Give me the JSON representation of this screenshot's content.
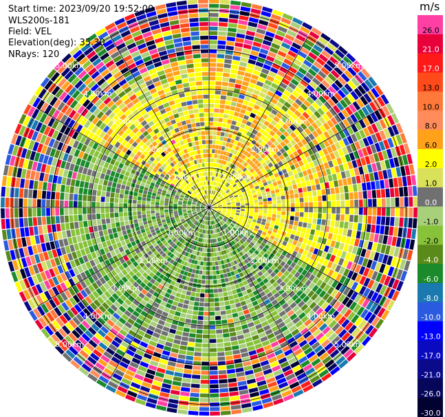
{
  "info": {
    "start_time": "Start time: 2023/09/20 19:52:00",
    "instrument": "WLS200s-181",
    "field": "Field: VEL",
    "elevation": "Elevation(deg): 35.30",
    "nrays": "NRays: 120"
  },
  "colors": {
    "background": "#ffffff",
    "grid": "#000000",
    "range_label": "#ffffff"
  },
  "chart_data": {
    "type": "heatmap",
    "subtype": "radar-ppi",
    "field": "VEL",
    "rays": 120,
    "elevation_deg": 35.3,
    "range_rings_km": [
      1.0,
      2.0,
      3.0,
      4.0,
      5.0
    ],
    "range_ring_labels": [
      "1.00km",
      "2.00km",
      "3.00km",
      "4.00km",
      "5.00km"
    ],
    "radial_spokes_deg": [
      0,
      30,
      60,
      90,
      120,
      150,
      180,
      210,
      240,
      270,
      300,
      330
    ],
    "colorbar": {
      "unit": "m/s",
      "ticks": [
        "26.0",
        "21.0",
        "17.0",
        "13.0",
        "10.0",
        "8.0",
        "6.0",
        "2.0",
        "1.0",
        "0.0",
        "-1.0",
        "-2.0",
        "-4.0",
        "-6.0",
        "-8.0",
        "-10.0",
        "-13.0",
        "-17.0",
        "-21.0",
        "-26.0",
        "-30.0"
      ],
      "bands": [
        {
          "label": "26.0",
          "color": "#ff3fa4"
        },
        {
          "label": "21.0",
          "color": "#e8003a"
        },
        {
          "label": "17.0",
          "color": "#ff1a1a"
        },
        {
          "label": "13.0",
          "color": "#ff4a1a"
        },
        {
          "label": "10.0",
          "color": "#ff7a3a"
        },
        {
          "label": "8.0",
          "color": "#ff8c5a"
        },
        {
          "label": "6.0",
          "color": "#ffa21a"
        },
        {
          "label": "2.0",
          "color": "#ffff00"
        },
        {
          "label": "1.0",
          "color": "#d9e15a"
        },
        {
          "label": "0.0",
          "color": "#707070"
        },
        {
          "label": "-1.0",
          "color": "#a8d07a"
        },
        {
          "label": "-2.0",
          "color": "#88c23a"
        },
        {
          "label": "-4.0",
          "color": "#5a8a1a"
        },
        {
          "label": "-6.0",
          "color": "#1a8a2a"
        },
        {
          "label": "-8.0",
          "color": "#1a7ab0"
        },
        {
          "label": "-10.0",
          "color": "#2a5ae0"
        },
        {
          "label": "-13.0",
          "color": "#0000ff"
        },
        {
          "label": "-17.0",
          "color": "#0a0ac0"
        },
        {
          "label": "-21.0",
          "color": "#0a0a8a"
        },
        {
          "label": "-26.0",
          "color": "#06065a"
        },
        {
          "label": "-30.0",
          "color": "#020230"
        }
      ]
    },
    "velocity_pattern": {
      "positive_sector_deg": [
        300,
        120
      ],
      "negative_sector_deg": [
        120,
        300
      ],
      "clean_range_km": 3.8,
      "noise_range_km": 5.3
    }
  }
}
